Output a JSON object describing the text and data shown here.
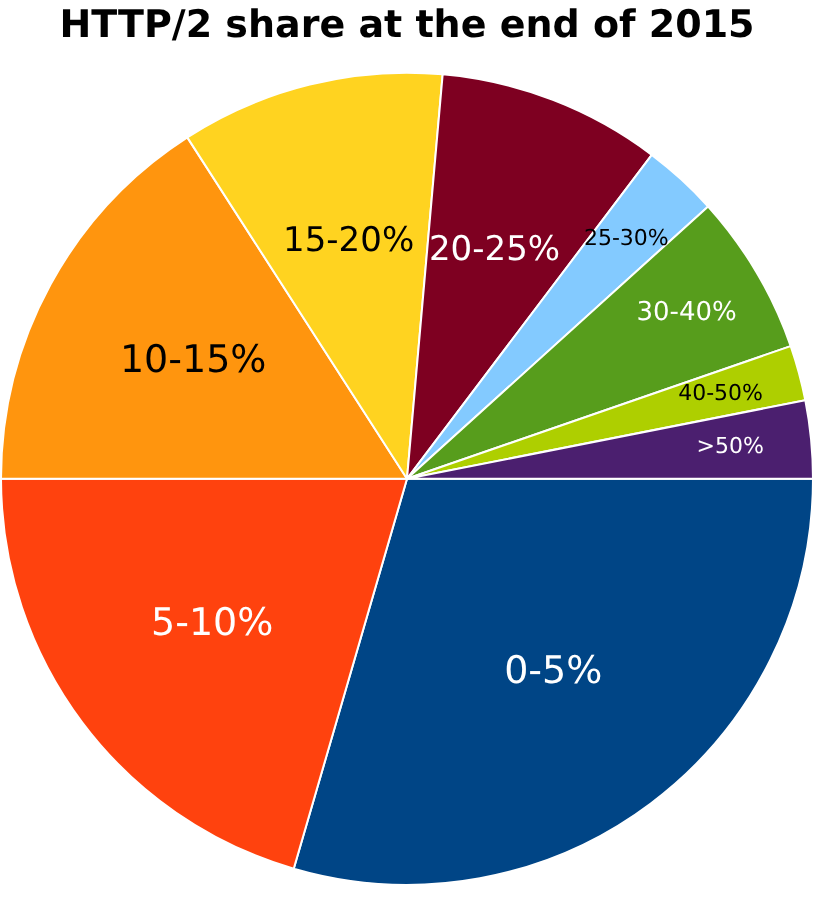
{
  "chart_data": {
    "type": "pie",
    "title": "HTTP/2 share at the end of 2015",
    "categories": [
      "0-5%",
      "5-10%",
      "10-15%",
      "15-20%",
      "20-25%",
      "25-30%",
      "30-40%",
      "40-50%",
      ">50%"
    ],
    "values": [
      29.5,
      20.5,
      15.9,
      10.5,
      8.9,
      3.0,
      6.4,
      2.2,
      3.1
    ],
    "colors": [
      "#004586",
      "#ff420e",
      "#ff950e",
      "#ffd320",
      "#7e0021",
      "#83caff",
      "#579d1c",
      "#aecf00",
      "#4b1f6f"
    ]
  }
}
